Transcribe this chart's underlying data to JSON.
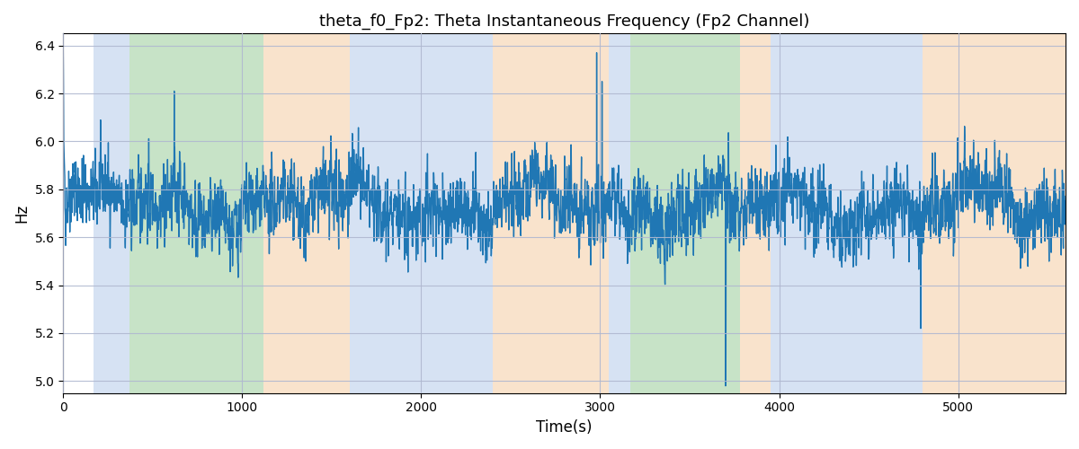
{
  "title": "theta_f0_Fp2: Theta Instantaneous Frequency (Fp2 Channel)",
  "xlabel": "Time(s)",
  "ylabel": "Hz",
  "ylim": [
    4.95,
    6.45
  ],
  "xlim": [
    0,
    5600
  ],
  "line_color": "#2077b4",
  "line_width": 1.0,
  "bg_color": "#ffffff",
  "grid_color": "#b0b8d0",
  "regions": [
    {
      "start": 170,
      "end": 370,
      "color": "#aec6e8",
      "alpha": 0.5
    },
    {
      "start": 370,
      "end": 1120,
      "color": "#90c890",
      "alpha": 0.5
    },
    {
      "start": 1120,
      "end": 1600,
      "color": "#f5c99a",
      "alpha": 0.5
    },
    {
      "start": 1600,
      "end": 1800,
      "color": "#aec6e8",
      "alpha": 0.5
    },
    {
      "start": 1800,
      "end": 2400,
      "color": "#aec6e8",
      "alpha": 0.5
    },
    {
      "start": 2400,
      "end": 2600,
      "color": "#f5c99a",
      "alpha": 0.5
    },
    {
      "start": 2600,
      "end": 3050,
      "color": "#f5c99a",
      "alpha": 0.5
    },
    {
      "start": 3050,
      "end": 3170,
      "color": "#aec6e8",
      "alpha": 0.5
    },
    {
      "start": 3170,
      "end": 3780,
      "color": "#90c890",
      "alpha": 0.5
    },
    {
      "start": 3780,
      "end": 3950,
      "color": "#f5c99a",
      "alpha": 0.5
    },
    {
      "start": 3950,
      "end": 4800,
      "color": "#aec6e8",
      "alpha": 0.5
    },
    {
      "start": 4800,
      "end": 5600,
      "color": "#f5c99a",
      "alpha": 0.5
    }
  ],
  "seed": 42,
  "n_points": 5600,
  "t_start": 0,
  "t_end": 5600,
  "base_freq": 5.73,
  "noise_std": 0.13,
  "title_fontsize": 13
}
